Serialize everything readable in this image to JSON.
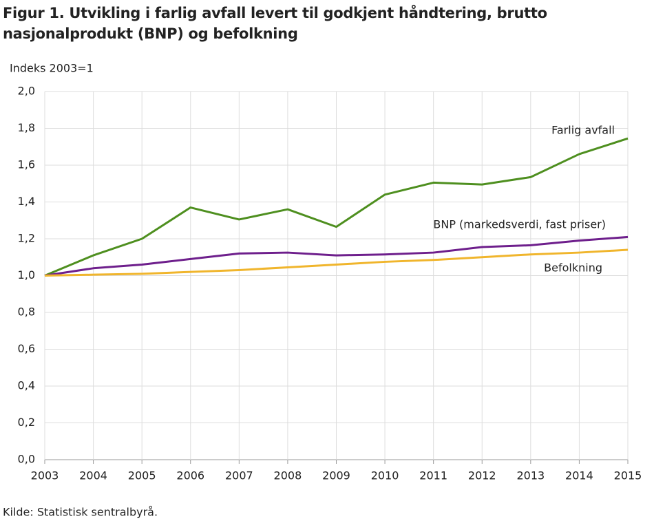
{
  "chart_data": {
    "type": "line",
    "title": "Figur 1. Utvikling i farlig avfall levert til godkjent håndtering, brutto nasjonalprodukt (BNP) og befolkning",
    "y_label": "Indeks 2003=1",
    "source": "Kilde: Statistisk sentralbyrå.",
    "categories": [
      "2003",
      "2004",
      "2005",
      "2006",
      "2007",
      "2008",
      "2009",
      "2010",
      "2011",
      "2012",
      "2013",
      "2014",
      "2015"
    ],
    "series": [
      {
        "name": "Farlig avfall",
        "color": "#4e8f1f",
        "values": [
          1.0,
          1.11,
          1.2,
          1.37,
          1.305,
          1.36,
          1.265,
          1.44,
          1.505,
          1.495,
          1.535,
          1.66,
          1.745
        ]
      },
      {
        "name": "BNP (markedsverdi,  fast priser)",
        "color": "#6e1f8c",
        "values": [
          1.0,
          1.04,
          1.06,
          1.09,
          1.12,
          1.125,
          1.11,
          1.115,
          1.125,
          1.155,
          1.165,
          1.19,
          1.21
        ]
      },
      {
        "name": "Befolkning",
        "color": "#f0b52c",
        "values": [
          1.0,
          1.005,
          1.01,
          1.02,
          1.03,
          1.045,
          1.06,
          1.075,
          1.085,
          1.1,
          1.115,
          1.125,
          1.14
        ]
      }
    ],
    "ylim": [
      0,
      2
    ],
    "yticks": [
      {
        "value": 0,
        "label": "0,0"
      },
      {
        "value": 0.2,
        "label": "0,2"
      },
      {
        "value": 0.4,
        "label": "0,4"
      },
      {
        "value": 0.6,
        "label": "0,6"
      },
      {
        "value": 0.8,
        "label": "0,8"
      },
      {
        "value": 1,
        "label": "1,0"
      },
      {
        "value": 1.2,
        "label": "1,2"
      },
      {
        "value": 1.4,
        "label": "1,4"
      },
      {
        "value": 1.6,
        "label": "1,6"
      },
      {
        "value": 1.8,
        "label": "1,8"
      },
      {
        "value": 2,
        "label": "2,0"
      }
    ],
    "grid": true
  }
}
